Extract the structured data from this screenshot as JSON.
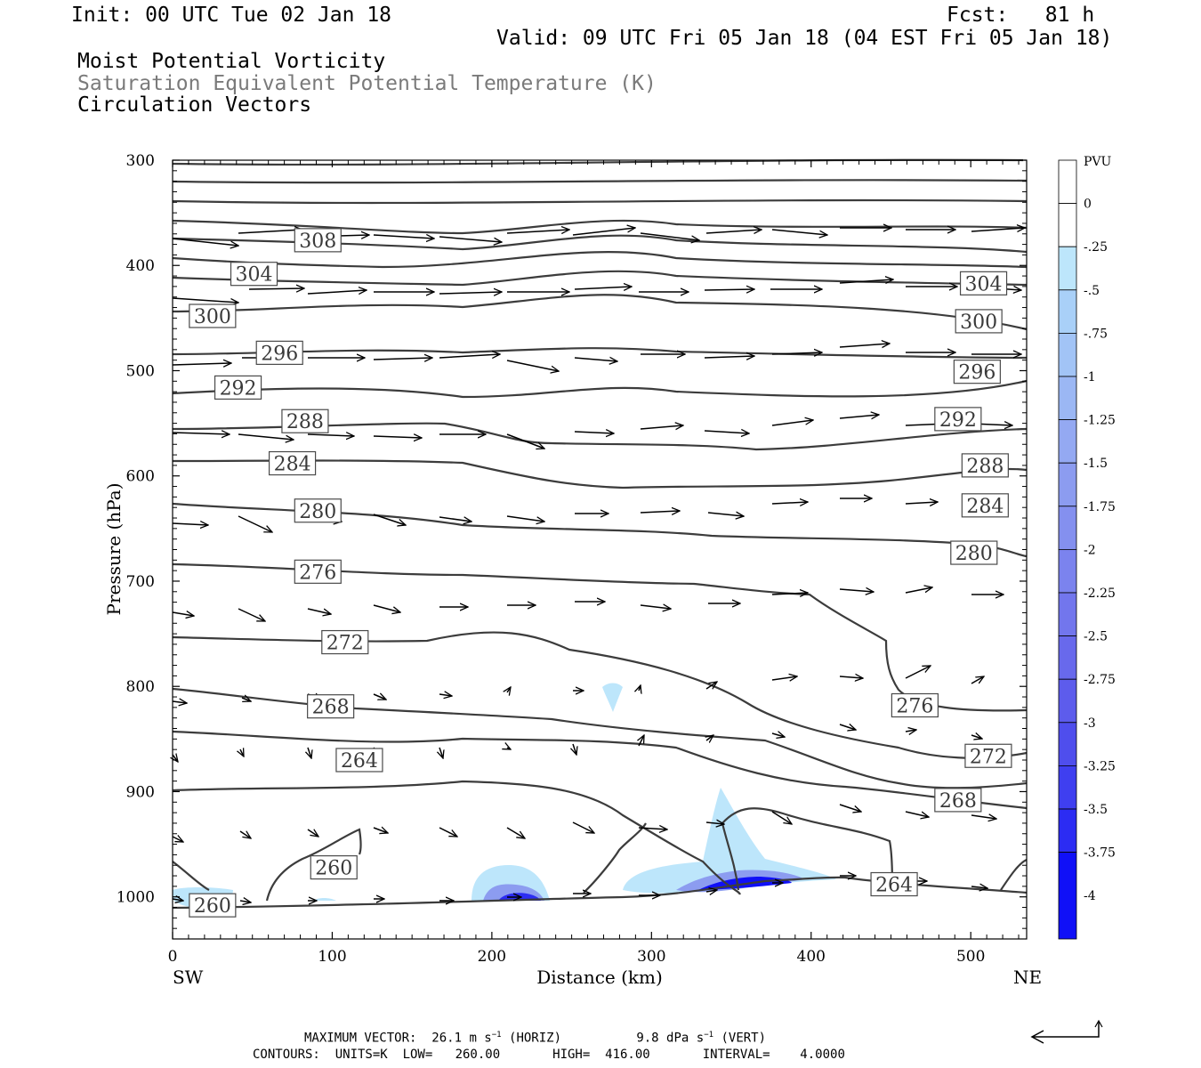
{
  "header": {
    "init": "Init: 00 UTC Tue 02 Jan 18",
    "fcst": "Fcst:   81 h",
    "valid": "Valid: 09 UTC Fri 05 Jan 18 (04 EST Fri 05 Jan 18)",
    "title1": "Moist Potential Vorticity",
    "title2": "Saturation Equivalent Potential Temperature (K)",
    "title3": "Circulation Vectors"
  },
  "footer": {
    "max_vector_label": "MAXIMUM VECTOR:",
    "horiz": "26.1 m s",
    "horiz_unit": "(HORIZ)",
    "vert": "9.8 dPa s",
    "vert_unit": "(VERT)",
    "contours_line": "CONTOURS:  UNITS=K  LOW=   260.00       HIGH=  416.00       INTERVAL=    4.0000"
  },
  "chart_data": {
    "type": "cross-section",
    "xlabel": "Distance (km)",
    "ylabel": "Pressure (hPa)",
    "x_left_label": "SW",
    "x_right_label": "NE",
    "xlim": [
      0,
      535
    ],
    "ylim": [
      1040,
      300
    ],
    "x_ticks": [
      0,
      100,
      200,
      300,
      400,
      500
    ],
    "y_ticks": [
      300,
      400,
      500,
      600,
      700,
      800,
      900,
      1000
    ],
    "colorbar": {
      "unit": "PVU",
      "labels": [
        "0",
        "-.25",
        "-.5",
        "-.75",
        "-1",
        "-1.25",
        "-1.5",
        "-1.75",
        "-2",
        "-2.25",
        "-2.5",
        "-2.75",
        "-3",
        "-3.25",
        "-3.5",
        "-3.75",
        "-4"
      ],
      "colors": [
        "#ffffff",
        "#ffffff",
        "#bde6fb",
        "#a9d0f8",
        "#a2c4f6",
        "#9bb7f4",
        "#94a9f2",
        "#8c9cf0",
        "#8490ef",
        "#7b83ee",
        "#7276ed",
        "#6869ec",
        "#5d5cec",
        "#4f4eed",
        "#3f3ff0",
        "#2c2cf3",
        "#1010f7"
      ]
    },
    "contour_labels": [
      {
        "v": "308",
        "x": 91,
        "p": 376
      },
      {
        "v": "304",
        "x": 51,
        "p": 408
      },
      {
        "v": "304",
        "x": 508,
        "p": 417
      },
      {
        "v": "300",
        "x": 25,
        "p": 448
      },
      {
        "v": "300",
        "x": 505,
        "p": 453
      },
      {
        "v": "296",
        "x": 67,
        "p": 483
      },
      {
        "v": "296",
        "x": 504,
        "p": 501
      },
      {
        "v": "292",
        "x": 41,
        "p": 516
      },
      {
        "v": "292",
        "x": 492,
        "p": 546
      },
      {
        "v": "288",
        "x": 83,
        "p": 548
      },
      {
        "v": "288",
        "x": 509,
        "p": 590
      },
      {
        "v": "284",
        "x": 75,
        "p": 588
      },
      {
        "v": "284",
        "x": 509,
        "p": 628
      },
      {
        "v": "280",
        "x": 91,
        "p": 633
      },
      {
        "v": "280",
        "x": 502,
        "p": 673
      },
      {
        "v": "276",
        "x": 91,
        "p": 691
      },
      {
        "v": "276",
        "x": 465,
        "p": 818
      },
      {
        "v": "272",
        "x": 108,
        "p": 758
      },
      {
        "v": "272",
        "x": 511,
        "p": 866
      },
      {
        "v": "268",
        "x": 99,
        "p": 819
      },
      {
        "v": "268",
        "x": 492,
        "p": 908
      },
      {
        "v": "264",
        "x": 117,
        "p": 870
      },
      {
        "v": "264",
        "x": 452,
        "p": 988
      },
      {
        "v": "260",
        "x": 101,
        "p": 972
      },
      {
        "v": "260",
        "x": 25,
        "p": 1008
      }
    ]
  }
}
